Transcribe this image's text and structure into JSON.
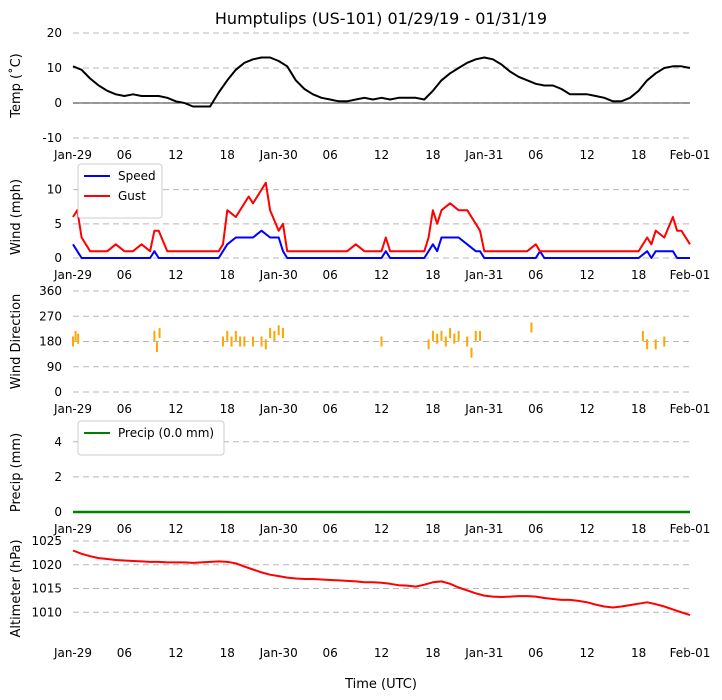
{
  "title": "Humptulips (US-101) 01/29/19 - 01/31/19",
  "xlabel": "Time (UTC)",
  "x_ticks": [
    {
      "hour": 0,
      "label": "Jan-29"
    },
    {
      "hour": 6,
      "label": "06"
    },
    {
      "hour": 12,
      "label": "12"
    },
    {
      "hour": 18,
      "label": "18"
    },
    {
      "hour": 24,
      "label": "Jan-30"
    },
    {
      "hour": 30,
      "label": "06"
    },
    {
      "hour": 36,
      "label": "12"
    },
    {
      "hour": 42,
      "label": "18"
    },
    {
      "hour": 48,
      "label": "Jan-31"
    },
    {
      "hour": 54,
      "label": "06"
    },
    {
      "hour": 60,
      "label": "12"
    },
    {
      "hour": 66,
      "label": "18"
    },
    {
      "hour": 72,
      "label": "Feb-01"
    }
  ],
  "colors": {
    "temp": "#000000",
    "speed": "#0000ff",
    "gust": "#ff0000",
    "direction": "#ffa500",
    "precip": "#008000",
    "altimeter": "#ff0000",
    "grid": "#b8b8b8"
  },
  "chart_data": [
    {
      "id": "temp",
      "type": "line",
      "ylabel": "Temp (˚C)",
      "ylim": [
        -10,
        20
      ],
      "yticks": [
        -10,
        0,
        10,
        20
      ],
      "zero_line": true,
      "series": [
        {
          "name": "Temp",
          "color": "#000000",
          "x": [
            0,
            1,
            2,
            3,
            4,
            5,
            6,
            7,
            8,
            9,
            10,
            11,
            12,
            13,
            14,
            15,
            16,
            17,
            18,
            19,
            20,
            21,
            22,
            23,
            24,
            25,
            26,
            27,
            28,
            29,
            30,
            31,
            32,
            33,
            34,
            35,
            36,
            37,
            38,
            39,
            40,
            41,
            42,
            43,
            44,
            45,
            46,
            47,
            48,
            49,
            50,
            51,
            52,
            53,
            54,
            55,
            56,
            57,
            58,
            59,
            60,
            61,
            62,
            63,
            64,
            65,
            66,
            67,
            68,
            69,
            70,
            71,
            72
          ],
          "values": [
            10.5,
            9.5,
            7,
            5,
            3.5,
            2.5,
            2,
            2.5,
            2,
            2,
            2,
            1.5,
            0.5,
            0,
            -1,
            -1,
            -1,
            3,
            6.5,
            9.5,
            11.5,
            12.5,
            13,
            13,
            12,
            10.5,
            6.5,
            4,
            2.5,
            1.5,
            1,
            0.5,
            0.5,
            1,
            1.5,
            1,
            1.5,
            1,
            1.5,
            1.5,
            1.5,
            1,
            3.5,
            6.5,
            8.5,
            10,
            11.5,
            12.5,
            13,
            12.5,
            11,
            9,
            7.5,
            6.5,
            5.5,
            5,
            5,
            4,
            2.5,
            2.5,
            2.5,
            2,
            1.5,
            0.5,
            0.5,
            1.5,
            3.5,
            6.5,
            8.5,
            10,
            10.5,
            10.5,
            10
          ]
        }
      ]
    },
    {
      "id": "wind",
      "type": "line",
      "ylabel": "Wind (mph)",
      "ylim": [
        0,
        12
      ],
      "yticks": [
        0,
        5,
        10
      ],
      "legend": {
        "placement": "top-left"
      },
      "series": [
        {
          "name": "Speed",
          "color": "#0000ff",
          "x": [
            0,
            0.5,
            1,
            2,
            3,
            4,
            5,
            6,
            7,
            8,
            9,
            9.5,
            10,
            11,
            12,
            13,
            14,
            15,
            16,
            17,
            17.5,
            18,
            19,
            20,
            21,
            22,
            23,
            24,
            24.5,
            25,
            26,
            27,
            28,
            29,
            30,
            31,
            32,
            33,
            34,
            35,
            36,
            36.5,
            37,
            38,
            39,
            40,
            41,
            41.5,
            42,
            42.5,
            43,
            44,
            45,
            46,
            47,
            47.5,
            48,
            49,
            50,
            51,
            52,
            53,
            54,
            54.5,
            55,
            56,
            57,
            58,
            59,
            60,
            61,
            62,
            63,
            64,
            65,
            66,
            67,
            67.5,
            68,
            69,
            70,
            70.5,
            71,
            72
          ],
          "values": [
            2,
            1,
            0,
            0,
            0,
            0,
            0,
            0,
            0,
            0,
            0,
            1,
            0,
            0,
            0,
            0,
            0,
            0,
            0,
            0,
            1,
            2,
            3,
            3,
            3,
            4,
            3,
            3,
            1,
            0,
            0,
            0,
            0,
            0,
            0,
            0,
            0,
            0,
            0,
            0,
            0,
            1,
            0,
            0,
            0,
            0,
            0,
            1,
            2,
            1,
            3,
            3,
            3,
            2,
            1,
            1,
            0,
            0,
            0,
            0,
            0,
            0,
            0,
            1,
            0,
            0,
            0,
            0,
            0,
            0,
            0,
            0,
            0,
            0,
            0,
            0,
            1,
            0,
            1,
            1,
            1,
            0,
            0,
            0
          ]
        },
        {
          "name": "Gust",
          "color": "#ff0000",
          "x": [
            0,
            0.5,
            1,
            2,
            3,
            4,
            5,
            6,
            7,
            8,
            9,
            9.5,
            10,
            11,
            12,
            13,
            14,
            15,
            16,
            17,
            17.5,
            18,
            19,
            20,
            20.5,
            21,
            22,
            22.5,
            23,
            24,
            24.5,
            25,
            26,
            27,
            28,
            29,
            30,
            31,
            32,
            33,
            34,
            35,
            36,
            36.5,
            37,
            38,
            39,
            40,
            41,
            41.5,
            42,
            42.5,
            43,
            44,
            45,
            46,
            47,
            47.5,
            48,
            49,
            50,
            51,
            52,
            53,
            54,
            54.5,
            55,
            56,
            57,
            58,
            59,
            60,
            61,
            62,
            63,
            64,
            65,
            66,
            67,
            67.5,
            68,
            69,
            70,
            70.5,
            71,
            72
          ],
          "values": [
            6,
            7,
            3,
            1,
            1,
            1,
            2,
            1,
            1,
            2,
            1,
            4,
            4,
            1,
            1,
            1,
            1,
            1,
            1,
            1,
            2,
            7,
            6,
            8,
            9,
            8,
            10,
            11,
            7,
            4,
            5,
            1,
            1,
            1,
            1,
            1,
            1,
            1,
            1,
            2,
            1,
            1,
            1,
            3,
            1,
            1,
            1,
            1,
            1,
            3,
            7,
            5,
            7,
            8,
            7,
            7,
            5,
            4,
            1,
            1,
            1,
            1,
            1,
            1,
            2,
            1,
            1,
            1,
            1,
            1,
            1,
            1,
            1,
            1,
            1,
            1,
            1,
            1,
            3,
            2,
            4,
            3,
            6,
            4,
            4,
            2
          ]
        }
      ]
    },
    {
      "id": "direction",
      "type": "scatter",
      "ylabel": "Wind Direction",
      "ylim": [
        0,
        360
      ],
      "yticks": [
        0,
        90,
        180,
        270,
        360
      ],
      "series": [
        {
          "name": "Direction",
          "color": "#ffa500",
          "x": [
            0,
            0.3,
            0.6,
            9.5,
            9.8,
            10.1,
            17.5,
            18,
            18.5,
            19,
            19.5,
            20,
            21,
            22,
            22.5,
            23,
            23.5,
            24,
            24.5,
            36,
            41.5,
            42,
            42.5,
            43,
            43.5,
            44,
            44.5,
            45,
            46,
            46.5,
            47,
            47.5,
            53.5,
            66.5,
            67,
            68,
            69
          ],
          "values": [
            180,
            200,
            190,
            200,
            160,
            210,
            180,
            200,
            180,
            200,
            180,
            180,
            180,
            180,
            170,
            210,
            200,
            220,
            210,
            180,
            170,
            200,
            190,
            200,
            180,
            210,
            190,
            200,
            180,
            140,
            200,
            200,
            230,
            200,
            170,
            170,
            180
          ]
        }
      ]
    },
    {
      "id": "precip",
      "type": "line",
      "ylabel": "Precip (mm)",
      "ylim": [
        0,
        4.5
      ],
      "yticks": [
        0,
        2,
        4
      ],
      "legend": {
        "placement": "top-left"
      },
      "series": [
        {
          "name": "Precip (0.0 mm)",
          "color": "#008000",
          "x": [
            0,
            72
          ],
          "values": [
            0,
            0
          ]
        }
      ]
    },
    {
      "id": "altimeter",
      "type": "line",
      "ylabel": "Altimeter (hPa)",
      "ylim": [
        1005,
        1025
      ],
      "yticks": [
        1010,
        1015,
        1020,
        1025
      ],
      "series": [
        {
          "name": "Altimeter",
          "color": "#ff0000",
          "x": [
            0,
            1,
            2,
            3,
            4,
            5,
            6,
            7,
            8,
            9,
            10,
            11,
            12,
            13,
            14,
            15,
            16,
            17,
            18,
            19,
            20,
            21,
            22,
            23,
            24,
            25,
            26,
            27,
            28,
            29,
            30,
            31,
            32,
            33,
            34,
            35,
            36,
            37,
            38,
            39,
            40,
            41,
            42,
            43,
            44,
            45,
            46,
            47,
            48,
            49,
            50,
            51,
            52,
            53,
            54,
            55,
            56,
            57,
            58,
            59,
            60,
            61,
            62,
            63,
            64,
            65,
            66,
            67,
            68,
            69,
            70,
            71,
            72
          ],
          "values": [
            1023,
            1022.3,
            1021.8,
            1021.4,
            1021.2,
            1021,
            1020.9,
            1020.8,
            1020.7,
            1020.6,
            1020.6,
            1020.5,
            1020.5,
            1020.5,
            1020.4,
            1020.5,
            1020.6,
            1020.7,
            1020.6,
            1020.3,
            1019.6,
            1019,
            1018.4,
            1017.9,
            1017.6,
            1017.3,
            1017.1,
            1017,
            1017,
            1016.9,
            1016.8,
            1016.7,
            1016.6,
            1016.5,
            1016.3,
            1016.3,
            1016.2,
            1016,
            1015.7,
            1015.6,
            1015.4,
            1015.8,
            1016.3,
            1016.5,
            1016,
            1015.2,
            1014.6,
            1014,
            1013.5,
            1013.3,
            1013.2,
            1013.3,
            1013.4,
            1013.4,
            1013.3,
            1013,
            1012.8,
            1012.6,
            1012.6,
            1012.4,
            1012.1,
            1011.6,
            1011.2,
            1011,
            1011.2,
            1011.5,
            1011.8,
            1012.1,
            1011.7,
            1011.2,
            1010.6,
            1010,
            1009.4
          ]
        }
      ]
    }
  ]
}
